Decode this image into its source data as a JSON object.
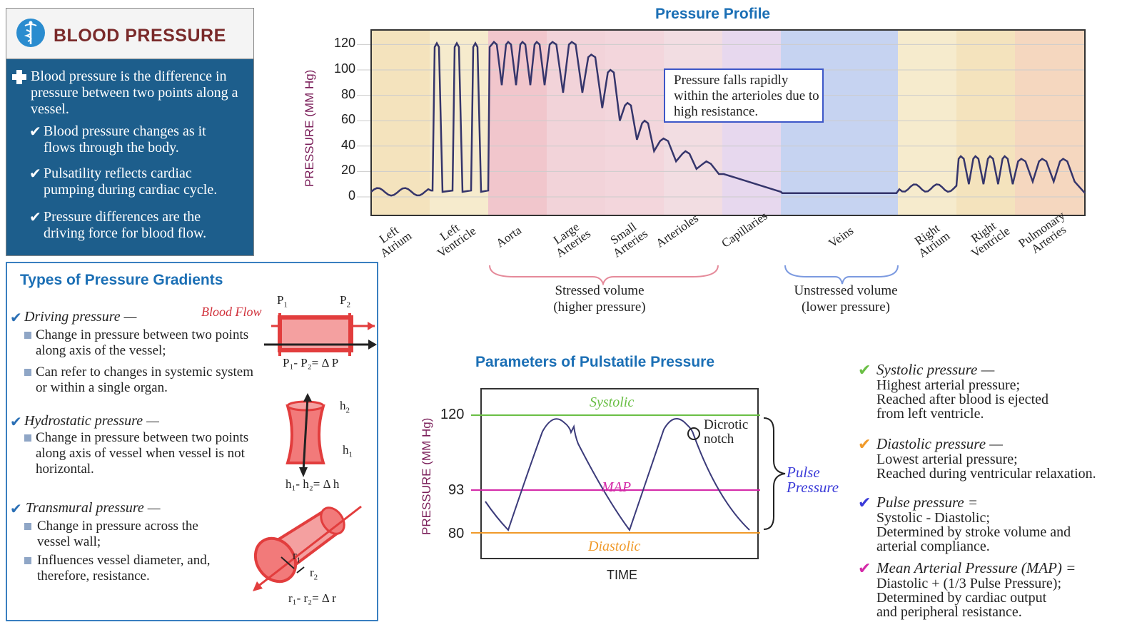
{
  "title": "BLOOD PRESSURE",
  "intro": {
    "main": "Blood pressure is the difference in pressure between two points along a vessel.",
    "bullets": [
      "Blood pressure changes as it flows through the body.",
      "Pulsatility reflects cardiac pumping during cardiac cycle.",
      "Pressure differences are the driving force for blood flow."
    ]
  },
  "gradients": {
    "title": "Types of Pressure Gradients",
    "driving": {
      "name": "Driving pressure —",
      "items": [
        "Change in pressure between two points along axis of the vessel;",
        "Can refer to changes in systemic system or within a single organ."
      ],
      "flow_label": "Blood Flow",
      "p1": "P",
      "p1_sub": "1",
      "p2": "P",
      "p2_sub": "2",
      "formula": "P₁- P₂= Δ P"
    },
    "hydrostatic": {
      "name": "Hydrostatic pressure —",
      "items": [
        "Change in pressure between two points along axis of vessel when vessel is not horizontal."
      ],
      "h2": "h",
      "h2_sub": "2",
      "h1": "h",
      "h1_sub": "1",
      "formula": "h₁- h₂= Δ h"
    },
    "transmural": {
      "name": "Transmural pressure —",
      "items": [
        "Change in pressure across the vessel wall;",
        "Influences vessel diameter, and, therefore, resistance."
      ],
      "r1": "r",
      "r1_sub": "1",
      "r2": "r",
      "r2_sub": "2",
      "formula": "r₁- r₂= Δ r"
    }
  },
  "profile": {
    "title": "Pressure Profile",
    "ylabel": "PRESSURE (MM Hg)",
    "yticks": [
      "120",
      "100",
      "80",
      "60",
      "40",
      "20",
      "0"
    ],
    "segments": [
      {
        "label": "Left\nAtrium",
        "color": "#f4e3bd"
      },
      {
        "label": "Left\nVentricle",
        "color": "#f6ebcd"
      },
      {
        "label": "Aorta",
        "color": "#f1c6cc"
      },
      {
        "label": "Large\nArteries",
        "color": "#f2d3d9"
      },
      {
        "label": "Small\nArteries",
        "color": "#f3d6dc"
      },
      {
        "label": "Arterioles",
        "color": "#f2dde2"
      },
      {
        "label": "Capillaries",
        "color": "#e7d8ee"
      },
      {
        "label": "Veins",
        "color": "#c6d3f1"
      },
      {
        "label": "Right\nAtrium",
        "color": "#f6ebcd"
      },
      {
        "label": "Right\nVentricle",
        "color": "#f4e3bd"
      },
      {
        "label": "Pulmonary\nArteries",
        "color": "#f5d7bf"
      }
    ],
    "note": "Pressure falls rapidly within the arterioles due to high resistance.",
    "stressed": "Stressed volume\n(higher pressure)",
    "unstressed": "Unstressed volume\n(lower pressure)"
  },
  "params": {
    "title": "Parameters of Pulstatile Pressure",
    "ylabel": "PRESSURE (MM Hg)",
    "xlabel": "TIME",
    "systolic_value": "120",
    "map_value": "93",
    "diastolic_value": "80",
    "systolic_label": "Systolic",
    "map_label": "MAP",
    "diastolic_label": "Diastolic",
    "dicrotic": "Dicrotic\nnotch",
    "pulse": "Pulse\nPressure",
    "colors": {
      "systolic": "#6abf45",
      "map": "#d42aa8",
      "diastolic": "#f09a2a",
      "pulse": "#3a3ad8"
    }
  },
  "definitions": [
    {
      "term": "Systolic pressure —",
      "color": "#6abf45",
      "lines": [
        "Highest arterial pressure;",
        "Reached after blood is ejected",
        "from left ventricle."
      ]
    },
    {
      "term": "Diastolic pressure —",
      "color": "#f09a2a",
      "lines": [
        "Lowest arterial pressure;",
        "Reached during ventricular relaxation."
      ]
    },
    {
      "term": "Pulse pressure =",
      "color": "#3a3ad8",
      "lines": [
        "Systolic - Diastolic;",
        "Determined by stroke volume and",
        "arterial compliance."
      ]
    },
    {
      "term": "Mean Arterial Pressure (MAP) =",
      "color": "#d42aa8",
      "lines": [
        "Diastolic + (1/3 Pulse Pressure);",
        "Determined by cardiac output",
        "and peripheral resistance."
      ]
    }
  ]
}
